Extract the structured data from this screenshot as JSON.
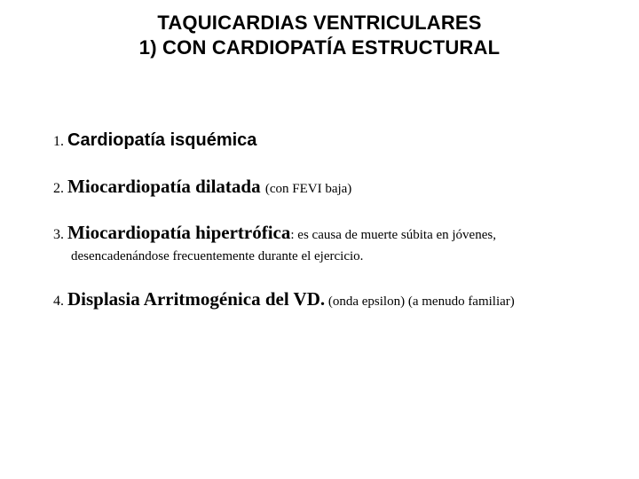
{
  "title": {
    "line1": "TAQUICARDIAS VENTRICULARES",
    "line2": "1) CON CARDIOPATÍA ESTRUCTURAL"
  },
  "items": [
    {
      "num": "1. ",
      "label": "Cardiopatía isquémica",
      "note": "",
      "cont": ""
    },
    {
      "num": "2. ",
      "label": "Miocardiopatía dilatada ",
      "note": "(con FEVI baja)",
      "cont": ""
    },
    {
      "num": "3. ",
      "label": "Miocardiopatía hipertrófica",
      "note": ": es causa de muerte súbita en jóvenes,",
      "cont": "desencadenándose frecuentemente durante el ejercicio."
    },
    {
      "num": "4. ",
      "label": "Displasia Arritmogénica del VD.",
      "note": " (onda epsilon) (a menudo familiar)",
      "cont": ""
    }
  ],
  "colors": {
    "text": "#000000",
    "background": "#ffffff",
    "dots": "#bfbfbf"
  },
  "dots": ". . . . . . . . . . . . . . . . . . . . . . . . . . . . . . . . . . . . . . . . . . . . . . . . . . . . . . . . . . . . . . . . . . . . . . . . . . . . . . . . . . . . . . . . . . . . . . . . . . . . . . . . . . . . . . . . . . . . . ."
}
